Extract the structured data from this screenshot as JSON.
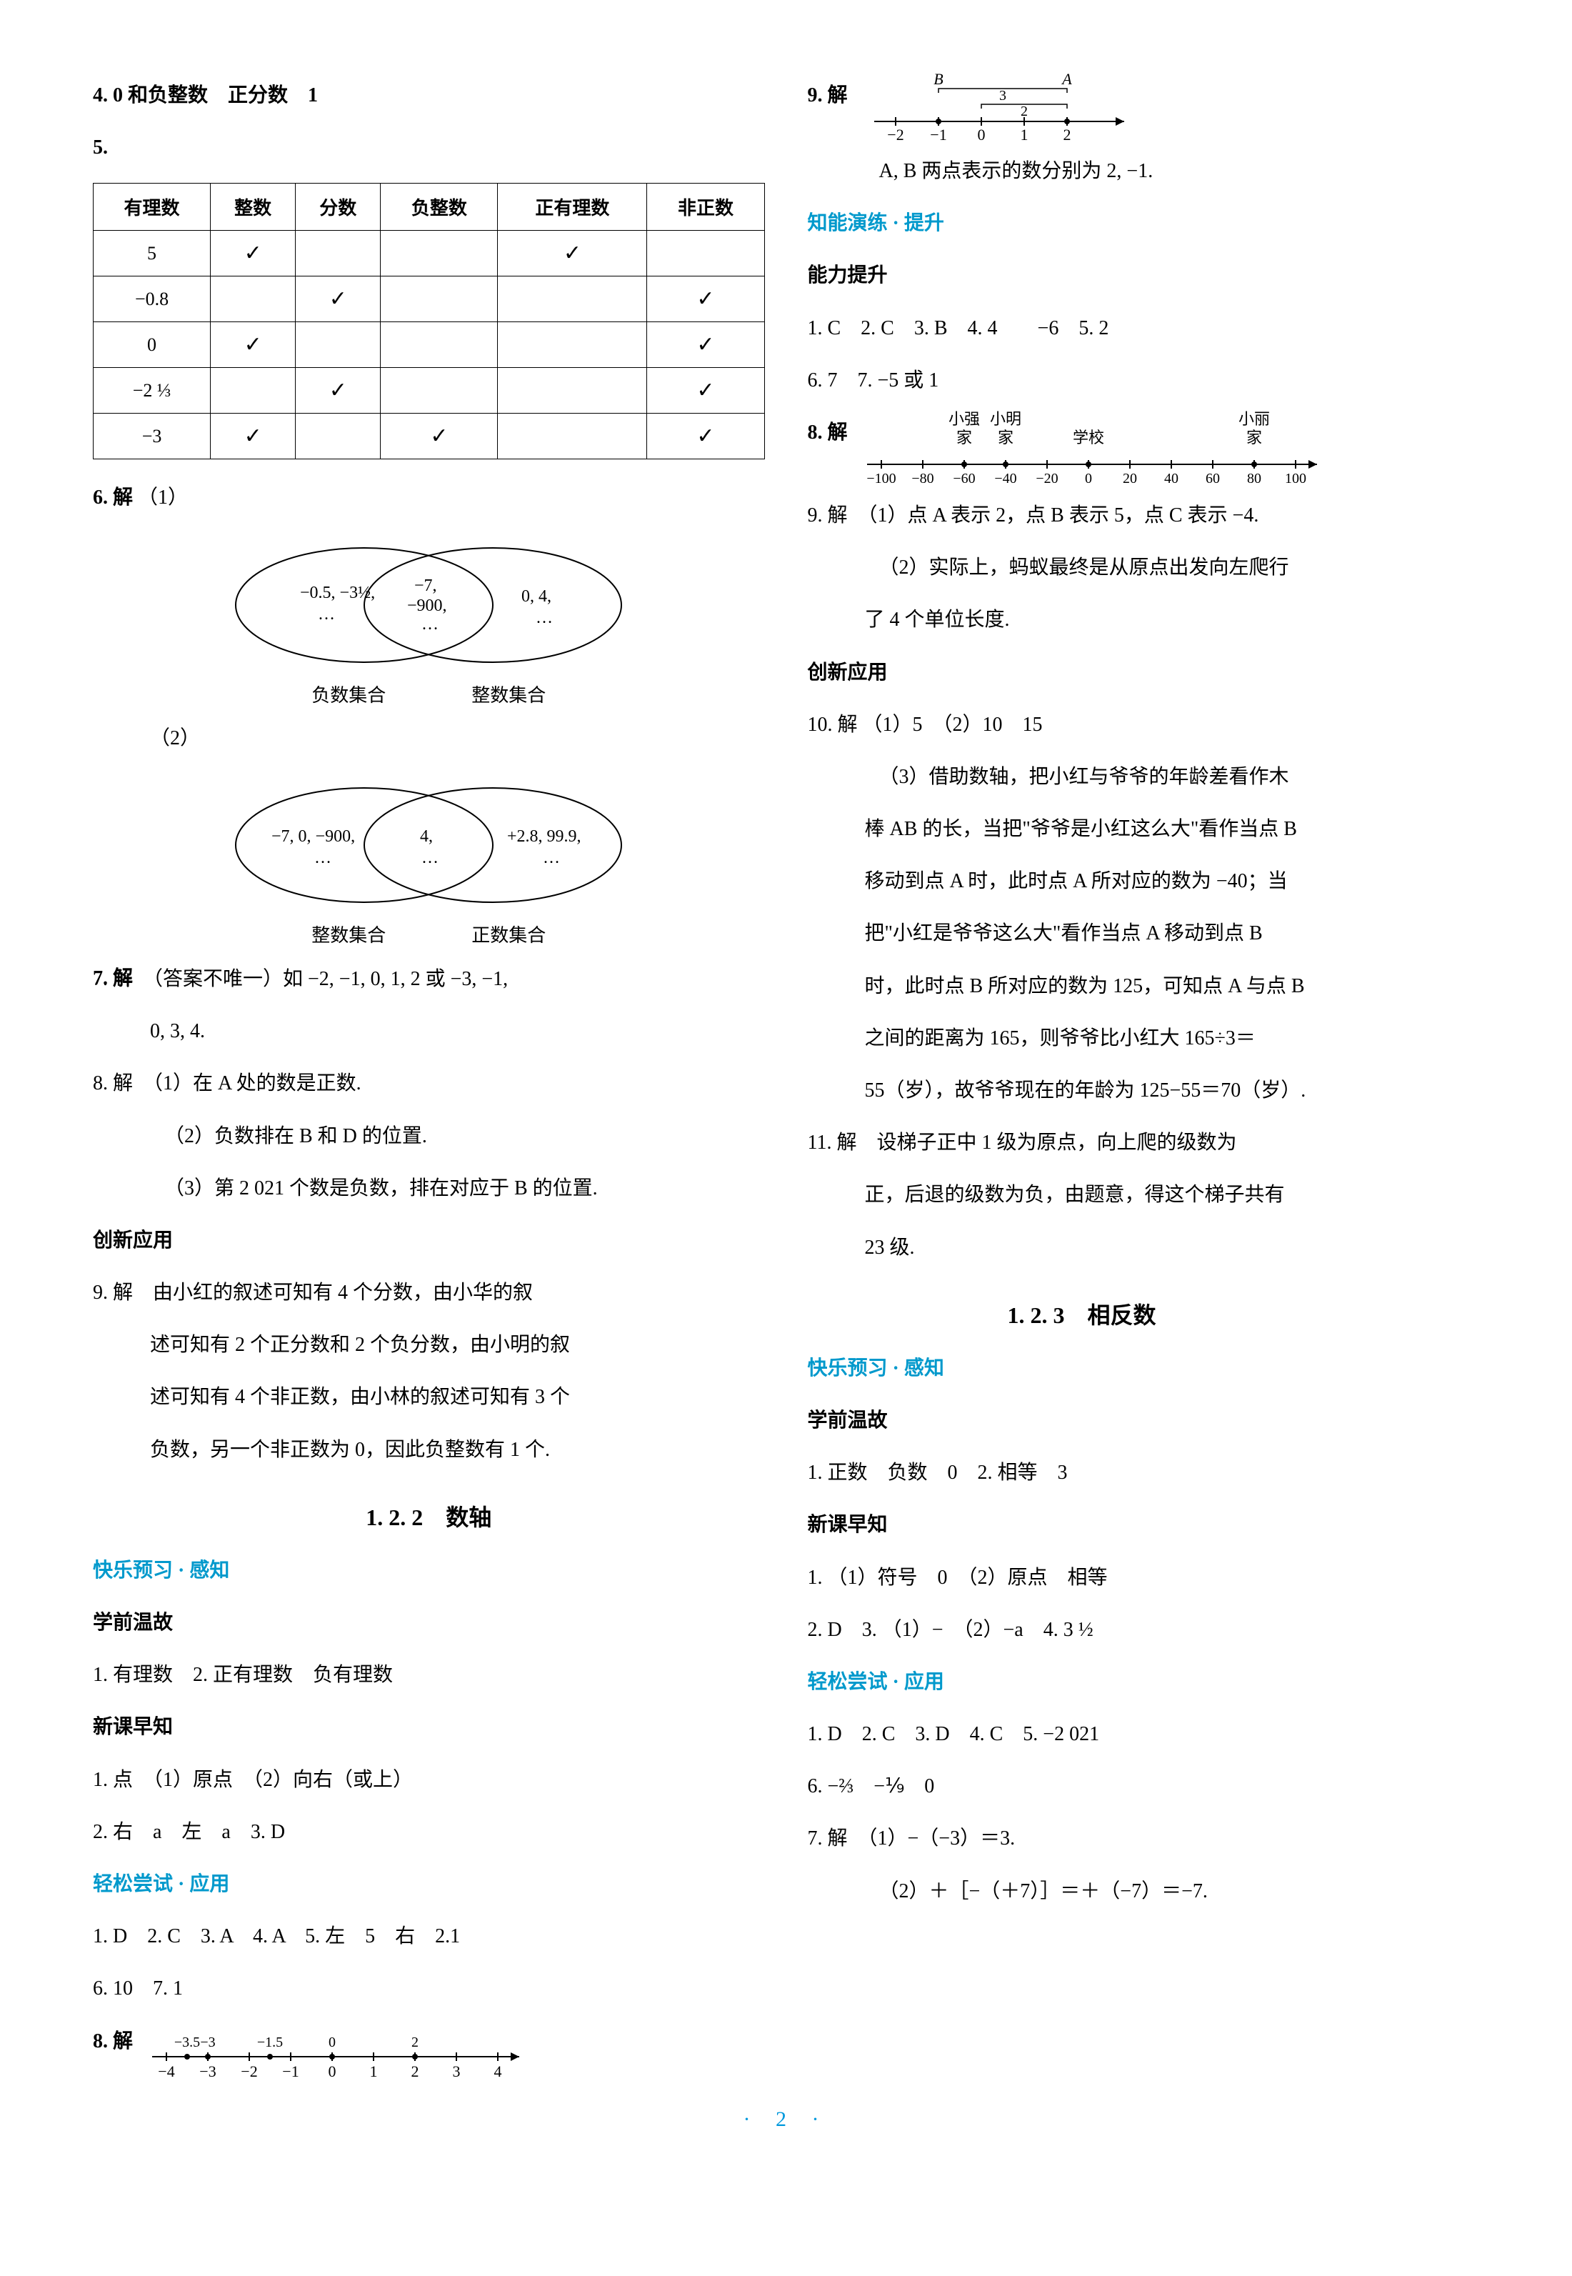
{
  "left": {
    "q4": "4. 0 和负整数　正分数　1",
    "q5_label": "5.",
    "table": {
      "headers": [
        "有理数",
        "整数",
        "分数",
        "负整数",
        "正有理数",
        "非正数"
      ],
      "rows": [
        [
          "5",
          "√",
          "",
          "",
          "√",
          ""
        ],
        [
          "−0.8",
          "",
          "√",
          "",
          "",
          "√"
        ],
        [
          "0",
          "√",
          "",
          "",
          "",
          "√"
        ],
        [
          "−2 ⅓",
          "",
          "√",
          "",
          "",
          "√"
        ],
        [
          "−3",
          "√",
          "",
          "√",
          "",
          "√"
        ]
      ]
    },
    "q6_label": "6. 解",
    "q6_1": "（1）",
    "q6_2": "（2）",
    "venn1": {
      "left_vals": "−0.5, −3½,\n…",
      "mid_vals": "−7,\n−900,\n…",
      "right_vals": "0, 4,\n…",
      "left_label": "负数集合",
      "right_label": "整数集合"
    },
    "venn2": {
      "left_vals": "−7, 0, −900,\n…",
      "mid_vals": "4,\n…",
      "right_vals": "+2.8, 99.9,\n…",
      "left_label": "整数集合",
      "right_label": "正数集合"
    },
    "q7": "7. 解　（答案不唯一）如 −2, −1, 0, 1, 2 或 −3, −1,",
    "q7b": "0, 3, 4.",
    "q8a": "8. 解　（1）在 A 处的数是正数.",
    "q8b": "（2）负数排在 B 和 D 的位置.",
    "q8c": "（3）第 2 021 个数是负数，排在对应于 B 的位置.",
    "chuangxin": "创新应用",
    "q9a": "9. 解　由小红的叙述可知有 4 个分数，由小华的叙",
    "q9b": "述可知有 2 个正分数和 2 个负分数，由小明的叙",
    "q9c": "述可知有 4 个非正数，由小林的叙述可知有 3 个",
    "q9d": "负数，另一个非正数为 0，因此负整数有 1 个.",
    "sec122": "1. 2. 2　数轴",
    "kuaile": "快乐预习 · 感知",
    "xueqian": "学前温故",
    "xq1": "1. 有理数　2. 正有理数　负有理数",
    "xinke": "新课早知",
    "xk1": "1. 点　（1）原点　（2）向右（或上）",
    "xk2": "2. 右　a　左　a　3. D",
    "qingsong": "轻松尝试 · 应用",
    "qs1": "1. D　2. C　3. A　4. A　5. 左　5　右　2.1",
    "qs2": "6. 10　7. 1",
    "qs3": "8. 解",
    "numline8": {
      "ticks": [
        "−4",
        "−3",
        "−2",
        "−1",
        "0",
        "1",
        "2",
        "3",
        "4"
      ],
      "marks": [
        "−3.5",
        "−3",
        "−1.5",
        "",
        "0",
        "",
        "2"
      ]
    }
  },
  "right": {
    "q9_label": "9. 解",
    "numline9": {
      "ticks": [
        "−2",
        "−1",
        "0",
        "1",
        "2"
      ],
      "B": "B",
      "A": "A",
      "d3": "3",
      "d2": "2"
    },
    "q9_text": "A, B 两点表示的数分别为 2, −1.",
    "zhineng": "知能演练 · 提升",
    "nengli": "能力提升",
    "n1": "1. C　2. C　3. B　4. 4　　−6　5. 2",
    "n2": "6. 7　7. −5 或 1",
    "n3": "8. 解",
    "numline8r": {
      "labels_top": [
        "小强",
        "小明",
        "",
        "",
        "小丽"
      ],
      "labels_top2": [
        "家",
        "家",
        "学校",
        "",
        "家"
      ],
      "ticks": [
        "−100",
        "−80",
        "−60",
        "−40",
        "−20",
        "0",
        "20",
        "40",
        "60",
        "80",
        "100"
      ]
    },
    "n9a": "9. 解　（1）点 A 表示 2，点 B 表示 5，点 C 表示 −4.",
    "n9b": "（2）实际上，蚂蚁最终是从原点出发向左爬行",
    "n9c": "了 4 个单位长度.",
    "chuangxin2": "创新应用",
    "c10a": "10. 解 （1）5　（2）10　15",
    "c10b": "（3）借助数轴，把小红与爷爷的年龄差看作木",
    "c10c": "棒 AB 的长，当把\"爷爷是小红这么大\"看作当点 B",
    "c10d": "移动到点 A 时，此时点 A 所对应的数为 −40；当",
    "c10e": "把\"小红是爷爷这么大\"看作当点 A 移动到点 B",
    "c10f": "时，此时点 B 所对应的数为 125，可知点 A 与点 B",
    "c10g": "之间的距离为 165，则爷爷比小红大 165÷3＝",
    "c10h": "55（岁），故爷爷现在的年龄为 125−55＝70（岁）.",
    "c11a": "11. 解　设梯子正中 1 级为原点，向上爬的级数为",
    "c11b": "正，后退的级数为负，由题意，得这个梯子共有",
    "c11c": "23 级.",
    "sec123": "1. 2. 3　相反数",
    "kuaile2": "快乐预习 · 感知",
    "xueqian2": "学前温故",
    "xq21": "1. 正数　负数　0　2. 相等　3",
    "xinke2": "新课早知",
    "xk21": "1. （1）符号　0　（2）原点　相等",
    "xk22": "2. D　3. （1）−　（2）−a　4. 3 ½",
    "qingsong2": "轻松尝试 · 应用",
    "qs21": "1. D　2. C　3. D　4. C　5. −2 021",
    "qs22": "6. −⅔　−⅑　0",
    "qs23a": "7. 解　（1）−（−3）＝3.",
    "qs23b": "（2）＋［−（＋7）］＝＋（−7）＝−7."
  },
  "footer": "·  2  ·",
  "colors": {
    "blue": "#0099cc",
    "text": "#000000",
    "bg": "#ffffff"
  }
}
